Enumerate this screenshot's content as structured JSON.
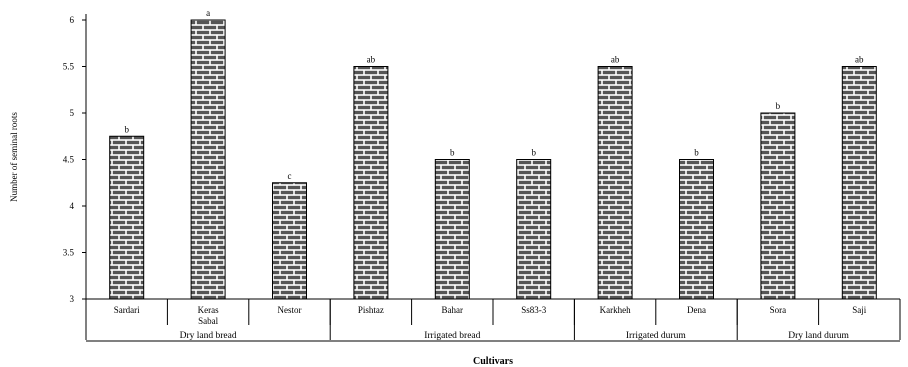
{
  "chart_data": {
    "type": "bar",
    "title": "",
    "ylabel": "Number of seminal roots",
    "xlabel": "Cultivars",
    "ylim": [
      3,
      6
    ],
    "yticks": [
      "3",
      "3.5",
      "4",
      "4.5",
      "5",
      "5.5",
      "6"
    ],
    "grid": false,
    "bar_pattern": "brick",
    "colors": {
      "bar_fill": "#ffffff",
      "brick": "#555555",
      "axis": "#000000"
    },
    "categories": [
      {
        "label": "Sardari",
        "value": 4.75,
        "letter": "b"
      },
      {
        "label": "Keras Sabal",
        "value": 6.0,
        "letter": "a"
      },
      {
        "label": "Nestor",
        "value": 4.25,
        "letter": "c"
      },
      {
        "label": "Pishtaz",
        "value": 5.5,
        "letter": "ab"
      },
      {
        "label": "Bahar",
        "value": 4.5,
        "letter": "b"
      },
      {
        "label": "Ss83-3",
        "value": 4.5,
        "letter": "b"
      },
      {
        "label": "Karkheh",
        "value": 5.5,
        "letter": "ab"
      },
      {
        "label": "Dena",
        "value": 4.5,
        "letter": "b"
      },
      {
        "label": "Sora",
        "value": 5.0,
        "letter": "b"
      },
      {
        "label": "Saji",
        "value": 5.5,
        "letter": "ab"
      }
    ],
    "groups": [
      {
        "label": "Dry land bread",
        "count": 3
      },
      {
        "label": "Irrigated bread",
        "count": 3
      },
      {
        "label": "Irrigated durum",
        "count": 2
      },
      {
        "label": "Dry land durum",
        "count": 2
      }
    ]
  }
}
